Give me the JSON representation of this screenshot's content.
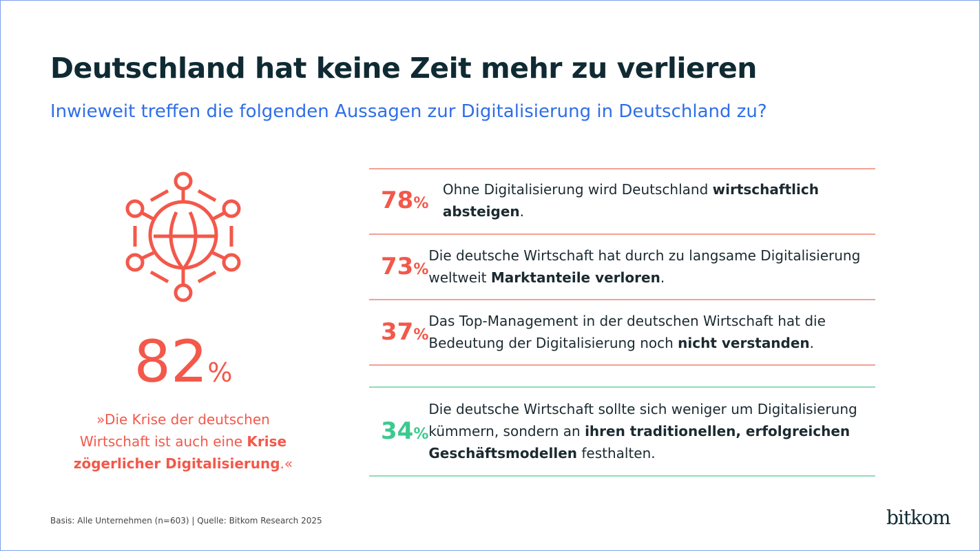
{
  "title": "Deutschland hat keine Zeit mehr zu verlieren",
  "subtitle": "Inwieweit treffen die folgenden Aussagen zur Digitalisierung in Deutschland zu?",
  "colors": {
    "red": "#f3584a",
    "green": "#3cc98f",
    "title": "#0f2a33",
    "subtitle": "#2f6ee8"
  },
  "icon": "globe-network-icon",
  "highlight": {
    "value": "82",
    "unit": "%",
    "quote_pre": "»Die Krise der deutschen Wirtschaft ist auch eine ",
    "quote_bold": "Krise zögerlicher Digitalisierung",
    "quote_post": ".«"
  },
  "items": [
    {
      "value": "78",
      "unit": "%",
      "pre": "Ohne Digitalisierung wird Deutschland ",
      "bold": "wirtschaftlich absteigen",
      "post": "."
    },
    {
      "value": "73",
      "unit": "%",
      "pre": "Die deutsche Wirtschaft hat durch zu langsame Digitalisierung weltweit ",
      "bold": "Marktanteile verloren",
      "post": "."
    },
    {
      "value": "37",
      "unit": "%",
      "pre": "Das Top-Management in der deutschen Wirtschaft hat die Bedeutung der Digitalisierung noch ",
      "bold": "nicht verstanden",
      "post": "."
    },
    {
      "value": "34",
      "unit": "%",
      "pre": "Die deutsche Wirtschaft sollte sich weniger um Digitalisierung kümmern, sondern an ",
      "bold": "ihren traditionellen, erfolgreichen Geschäftsmodellen",
      "post": " festhalten."
    }
  ],
  "footer": "Basis: Alle Unternehmen (n=603) | Quelle: Bitkom Research 2025",
  "logo": "bitkom"
}
